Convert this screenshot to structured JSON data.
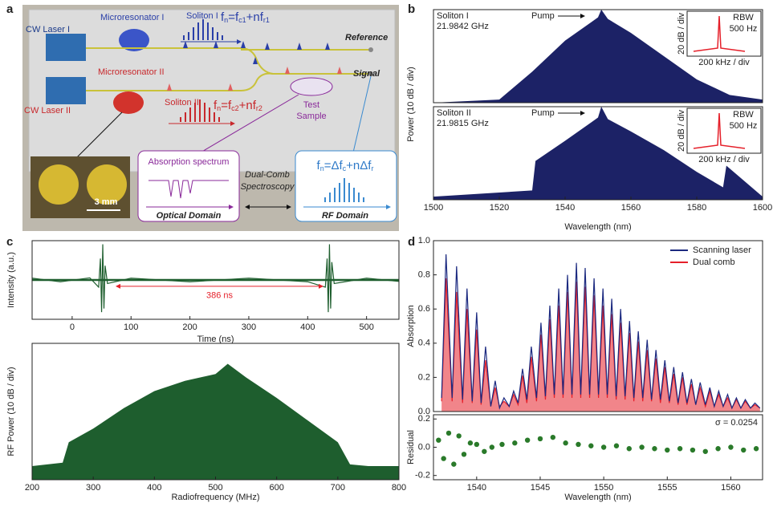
{
  "panel_labels": [
    "a",
    "b",
    "c",
    "d"
  ],
  "diagram": {
    "cw_laser_1": "CW Laser I",
    "microresonator_1": "Microresonator I",
    "soliton_1": "Soliton I",
    "formula_1": [
      "f",
      "n",
      "=f",
      "c1",
      "+nf",
      "r1"
    ],
    "reference": "Reference",
    "signal": "Signal",
    "microresonator_2": "Microresonator II",
    "cw_laser_2": "CW Laser II",
    "soliton_2": "Soliton II",
    "formula_2": [
      "f",
      "n",
      "=f",
      "c2",
      "+nf",
      "r2"
    ],
    "test_sample": [
      "Test",
      "Sample"
    ],
    "absorption_spectrum": "Absorption spectrum",
    "optical_domain": "Optical Domain",
    "dual_comb": [
      "Dual-Comb",
      "Spectroscopy"
    ],
    "formula_3": [
      "f",
      "n",
      "=Δf",
      "c",
      "+nΔf",
      "r"
    ],
    "rf_domain": "RF Domain",
    "scale_bar": "3 mm"
  },
  "chart_data": [
    {
      "type": "area",
      "annotations": [
        "Soliton I",
        "21.9842 GHz",
        "Pump"
      ],
      "inset": [
        "RBW",
        "500 Hz",
        "20 dB / div",
        "200 kHz / div"
      ],
      "ylabel": "Power (10 dB / div)",
      "x": [
        1500,
        1520,
        1530,
        1540,
        1548,
        1550,
        1551,
        1553,
        1560,
        1570,
        1580,
        1590,
        1600
      ],
      "values": [
        0,
        2,
        20,
        40,
        52,
        55,
        60,
        54,
        45,
        30,
        15,
        5,
        2
      ],
      "color": "#1c2266",
      "xlim": [
        1500,
        1600
      ],
      "ylim": [
        0,
        60
      ]
    },
    {
      "type": "area",
      "annotations": [
        "Soliton II",
        "21.9815 GHz",
        "Pump"
      ],
      "inset": [
        "RBW",
        "500 Hz",
        "20 dB / div",
        "200 kHz / div"
      ],
      "xlabel": "Wavelength (nm)",
      "x": [
        1500,
        1530,
        1531,
        1540,
        1548,
        1550,
        1551,
        1553,
        1560,
        1570,
        1580,
        1588,
        1589,
        1600
      ],
      "values": [
        2,
        6,
        25,
        38,
        50,
        53,
        60,
        52,
        44,
        32,
        18,
        8,
        22,
        2
      ],
      "color": "#1c2266",
      "xlim": [
        1500,
        1600
      ],
      "ylim": [
        0,
        60
      ],
      "xticks": [
        1500,
        1520,
        1540,
        1560,
        1580,
        1600
      ]
    },
    {
      "type": "line",
      "xlabel": "Time (ns)",
      "ylabel": "Intensity (a.u.)",
      "annotations": [
        "386 ns"
      ],
      "x": [
        -68,
        -20,
        30,
        45,
        48,
        50,
        52,
        54,
        56,
        60,
        100,
        200,
        300,
        400,
        430,
        433,
        435,
        437,
        439,
        441,
        445,
        500,
        555
      ],
      "values": [
        0.05,
        -0.05,
        0.06,
        -0.2,
        0.6,
        -0.9,
        1.0,
        -0.8,
        0.4,
        -0.1,
        0.05,
        -0.05,
        0.05,
        -0.05,
        -0.2,
        0.6,
        -0.9,
        1.0,
        -0.8,
        0.5,
        -0.1,
        0.05,
        -0.04
      ],
      "color": "#1e5e2e",
      "xlim": [
        -68,
        555
      ],
      "ylim": [
        -1.1,
        1.1
      ],
      "xticks": [
        0,
        100,
        200,
        300,
        400,
        500
      ]
    },
    {
      "type": "area",
      "xlabel": "Radiofrequency (MHz)",
      "ylabel": "RF Power (10 dB / div)",
      "x": [
        200,
        250,
        260,
        300,
        350,
        400,
        450,
        500,
        520,
        550,
        600,
        650,
        700,
        720,
        750,
        800
      ],
      "values": [
        8,
        10,
        22,
        30,
        42,
        52,
        58,
        62,
        68,
        60,
        48,
        35,
        22,
        9,
        8,
        8
      ],
      "color": "#1e5e2e",
      "xlim": [
        200,
        800
      ],
      "ylim": [
        0,
        80
      ],
      "xticks": [
        200,
        300,
        400,
        500,
        600,
        700,
        800
      ]
    },
    {
      "type": "line",
      "ylabel": "Absorption",
      "legend": "upper right",
      "x": [
        1537.24,
        1537.59,
        1538.07,
        1538.42,
        1538.89,
        1539.24,
        1539.65,
        1540.0,
        1540.35,
        1540.7,
        1541.11,
        1541.46,
        1541.8,
        1542.15,
        1542.56,
        1542.91,
        1543.26,
        1543.61,
        1543.95,
        1544.3,
        1544.71,
        1545.06,
        1545.41,
        1545.76,
        1546.11,
        1546.46,
        1546.8,
        1547.15,
        1547.5,
        1547.85,
        1548.19,
        1548.54,
        1548.89,
        1549.24,
        1549.59,
        1549.94,
        1550.28,
        1550.63,
        1550.98,
        1551.33,
        1551.68,
        1552.03,
        1552.37,
        1552.72,
        1553.07,
        1553.42,
        1553.76,
        1554.11,
        1554.46,
        1554.81,
        1555.16,
        1555.51,
        1555.85,
        1556.2,
        1556.55,
        1556.9,
        1557.24,
        1557.59,
        1558.0,
        1558.35,
        1558.7,
        1559.05,
        1559.4,
        1559.75,
        1560.09,
        1560.44,
        1560.79,
        1561.14,
        1561.55,
        1561.9,
        1562.3
      ],
      "series": [
        {
          "name": "Scanning laser",
          "color": "#1c2a80",
          "values": [
            0.08,
            0.92,
            0.08,
            0.85,
            0.07,
            0.72,
            0.06,
            0.58,
            0.05,
            0.38,
            0.03,
            0.18,
            0.02,
            0.08,
            0.03,
            0.12,
            0.05,
            0.25,
            0.07,
            0.38,
            0.08,
            0.52,
            0.09,
            0.62,
            0.1,
            0.72,
            0.1,
            0.8,
            0.1,
            0.87,
            0.1,
            0.84,
            0.1,
            0.78,
            0.1,
            0.72,
            0.1,
            0.66,
            0.09,
            0.6,
            0.09,
            0.53,
            0.08,
            0.47,
            0.08,
            0.42,
            0.07,
            0.36,
            0.07,
            0.3,
            0.06,
            0.26,
            0.05,
            0.23,
            0.05,
            0.19,
            0.04,
            0.17,
            0.04,
            0.14,
            0.03,
            0.12,
            0.03,
            0.1,
            0.02,
            0.08,
            0.02,
            0.07,
            0.02,
            0.05,
            0.02
          ]
        },
        {
          "name": "Dual comb",
          "color": "#e5202a",
          "values": [
            0.06,
            0.78,
            0.06,
            0.7,
            0.05,
            0.6,
            0.05,
            0.48,
            0.04,
            0.3,
            0.03,
            0.14,
            0.03,
            0.06,
            0.03,
            0.1,
            0.04,
            0.21,
            0.05,
            0.32,
            0.06,
            0.45,
            0.07,
            0.54,
            0.08,
            0.62,
            0.08,
            0.7,
            0.08,
            0.76,
            0.08,
            0.73,
            0.08,
            0.68,
            0.08,
            0.62,
            0.08,
            0.57,
            0.07,
            0.52,
            0.07,
            0.46,
            0.06,
            0.41,
            0.06,
            0.36,
            0.06,
            0.31,
            0.05,
            0.26,
            0.05,
            0.22,
            0.04,
            0.2,
            0.04,
            0.16,
            0.04,
            0.14,
            0.03,
            0.12,
            0.03,
            0.1,
            0.03,
            0.08,
            0.02,
            0.07,
            0.02,
            0.06,
            0.02,
            0.04,
            0.02
          ]
        }
      ],
      "xlim": [
        1536.6,
        1562.5
      ],
      "ylim": [
        0,
        1.0
      ],
      "yticks": [
        {
          "value": 0,
          "label": "0.0"
        },
        0.2,
        0.4,
        0.6,
        0.8,
        {
          "value": 1.0,
          "label": "1.0"
        }
      ]
    },
    {
      "type": "scatter",
      "xlabel": "Wavelength (nm)",
      "ylabel": "Residual",
      "annotations": [
        "σ = 0.0254"
      ],
      "x": [
        1537.0,
        1537.4,
        1537.8,
        1538.2,
        1538.6,
        1539.0,
        1539.5,
        1540.0,
        1540.6,
        1541.2,
        1542,
        1543,
        1544,
        1545,
        1546,
        1547,
        1548,
        1549,
        1550,
        1551,
        1552,
        1553,
        1554,
        1555,
        1556,
        1557,
        1558,
        1559,
        1560,
        1561,
        1562
      ],
      "values": [
        0.05,
        -0.08,
        0.1,
        -0.12,
        0.08,
        -0.05,
        0.03,
        0.02,
        -0.03,
        0.0,
        0.02,
        0.03,
        0.05,
        0.06,
        0.07,
        0.03,
        0.02,
        0.01,
        0.0,
        0.01,
        -0.01,
        0.0,
        -0.01,
        -0.02,
        -0.01,
        -0.02,
        -0.03,
        -0.01,
        0.0,
        -0.02,
        -0.01
      ],
      "color": "#2a7a2a",
      "xlim": [
        1536.6,
        1562.5
      ],
      "ylim": [
        -0.23,
        0.23
      ],
      "yticks": [
        -0.2,
        {
          "value": 0,
          "label": "0.0"
        },
        0.2
      ],
      "xticks": [
        1540,
        1545,
        1550,
        1555,
        1560
      ]
    }
  ]
}
